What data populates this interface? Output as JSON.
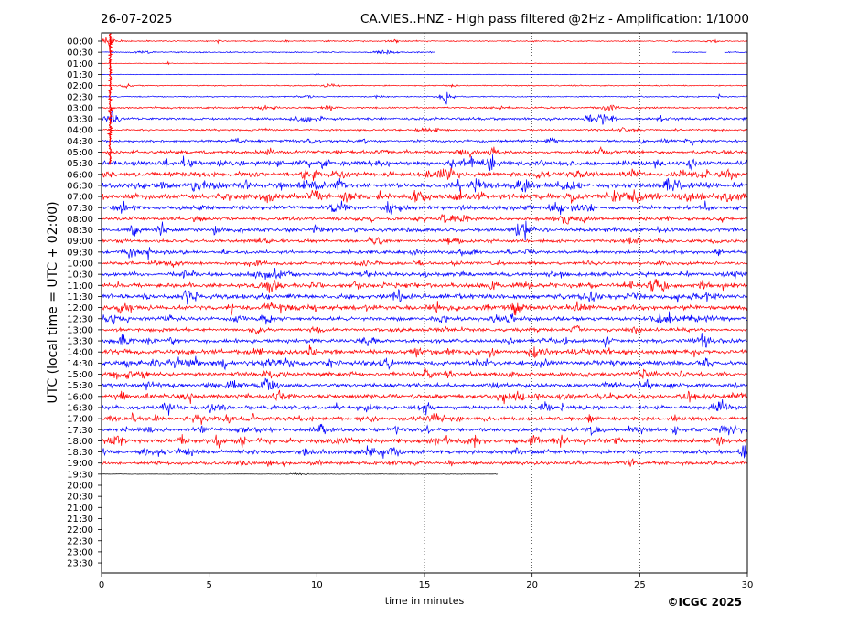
{
  "header": {
    "date": "26-07-2025",
    "title": "CA.VIES..HNZ - High pass filtered @2Hz - Amplification: 1/1000"
  },
  "chart_data": {
    "type": "line",
    "title": "CA.VIES..HNZ - High pass filtered @2Hz - Amplification: 1/1000",
    "date": "26-07-2025",
    "xlabel": "time in minutes",
    "ylabel": "UTC (local time = UTC + 02:00)",
    "xlim": [
      0,
      30
    ],
    "xticks": [
      0,
      5,
      10,
      15,
      20,
      25,
      30
    ],
    "x_grid": "dotted vertical lines at each x tick",
    "row_labels": [
      "00:00",
      "00:30",
      "01:00",
      "01:30",
      "02:00",
      "02:30",
      "03:00",
      "03:30",
      "04:00",
      "04:30",
      "05:00",
      "05:30",
      "06:00",
      "06:30",
      "07:00",
      "07:30",
      "08:00",
      "08:30",
      "09:00",
      "09:30",
      "10:00",
      "10:30",
      "11:00",
      "11:30",
      "12:00",
      "12:30",
      "13:00",
      "13:30",
      "14:00",
      "14:30",
      "15:00",
      "15:30",
      "16:00",
      "16:30",
      "17:00",
      "17:30",
      "18:00",
      "18:30",
      "19:00",
      "19:30",
      "20:00",
      "20:30",
      "21:00",
      "21:30",
      "22:00",
      "22:30",
      "23:00",
      "23:30"
    ],
    "trace_colors": [
      "#ff0000",
      "#0000ff"
    ],
    "last_trace_color": "#000000",
    "traces_with_data": 40,
    "last_trace_end_minute": 18.4,
    "row_activity": [
      1,
      1,
      0,
      0,
      1,
      1,
      2,
      3,
      2,
      3,
      4,
      6,
      6,
      7,
      7,
      5,
      4,
      5,
      4,
      4,
      4,
      5,
      6,
      6,
      6,
      5,
      4,
      5,
      6,
      6,
      5,
      5,
      6,
      5,
      5,
      5,
      6,
      5,
      4,
      0,
      0,
      0,
      0,
      0,
      0,
      0,
      0,
      0
    ],
    "gaps": [
      {
        "row": "00:30",
        "from_minute": 15.5,
        "to_minute": 26.5
      },
      {
        "row": "00:30",
        "from_minute": 28.1,
        "to_minute": 28.9
      }
    ],
    "spikes": [
      {
        "row": "00:00",
        "minute": 0.4,
        "amplitude": "large, spans 00:00–05:30"
      },
      {
        "row": "02:30",
        "minute": 16.0
      },
      {
        "row": "03:30",
        "minute": 0.5
      },
      {
        "row": "05:30",
        "minute": 17.3
      },
      {
        "row": "05:30",
        "minute": 18.1
      },
      {
        "row": "06:30",
        "minute": 11.0
      },
      {
        "row": "07:00",
        "minute": 11.5
      },
      {
        "row": "07:30",
        "minute": 21.2
      },
      {
        "row": "08:00",
        "minute": 15.9
      },
      {
        "row": "11:00",
        "minute": 18.2
      },
      {
        "row": "14:30",
        "minute": 3.6
      },
      {
        "row": "16:30",
        "minute": 15.1
      },
      {
        "row": "18:30",
        "minute": 29.9
      }
    ]
  },
  "footer": {
    "copyright": "©ICGC 2025"
  }
}
